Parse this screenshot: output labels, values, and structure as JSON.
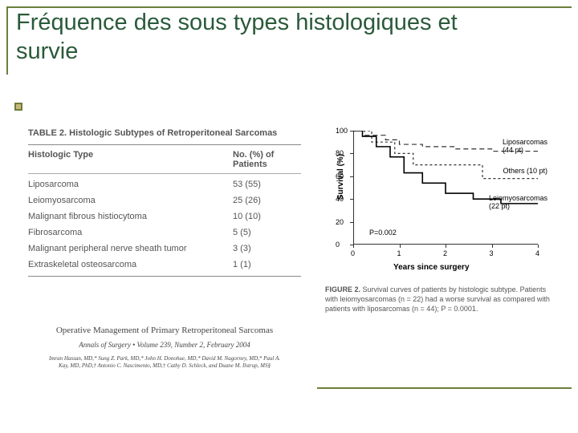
{
  "title": "Fréquence des sous types histologiques et survie",
  "table": {
    "caption": "TABLE 2.  Histologic Subtypes of Retroperitoneal Sarcomas",
    "col1": "Histologic Type",
    "col2": "No. (%) of Patients",
    "rows": [
      {
        "name": "Liposarcoma",
        "val": "53 (55)"
      },
      {
        "name": "Leiomyosarcoma",
        "val": "25 (26)"
      },
      {
        "name": "Malignant fibrous histiocytoma",
        "val": "10 (10)"
      },
      {
        "name": "Fibrosarcoma",
        "val": "5 (5)"
      },
      {
        "name": "Malignant peripheral nerve sheath tumor",
        "val": "3 (3)"
      },
      {
        "name": "Extraskeletal osteosarcoma",
        "val": "1 (1)"
      }
    ]
  },
  "cite": {
    "title": "Operative Management of Primary Retroperitoneal Sarcomas",
    "journal": "Annals of Surgery • Volume 239, Number 2, February 2004",
    "authors": "Imran Hassan, MD,* Sung Z. Park, MD,* John H. Donohue, MD,* David M. Nagorney, MD,* Paul A. Kay, MD, PhD,† Antonio C. Nascimento, MD,† Cathy D. Schleck, and Duane M. Ilstrup, MS§"
  },
  "chart": {
    "type": "km-survival",
    "ylabel": "Survival (%)",
    "xlabel": "Years since surgery",
    "ylim": [
      0,
      100
    ],
    "xlim": [
      0,
      4
    ],
    "yticks": [
      0,
      20,
      40,
      60,
      80,
      100
    ],
    "xticks": [
      0,
      1,
      2,
      3,
      4
    ],
    "pvalue": "P=0.002",
    "curves": {
      "lipo": {
        "label": "Liposarcomas",
        "n": "(44 pt)",
        "points": [
          [
            0,
            100
          ],
          [
            0.25,
            96
          ],
          [
            0.7,
            92
          ],
          [
            1.0,
            88
          ],
          [
            1.5,
            86
          ],
          [
            2.2,
            84
          ],
          [
            3.0,
            82
          ],
          [
            4.0,
            80
          ]
        ],
        "dash": "6 4",
        "color": "#333"
      },
      "others": {
        "label": "Others",
        "n": "(10 pt)",
        "points": [
          [
            0,
            100
          ],
          [
            0.4,
            90
          ],
          [
            0.9,
            80
          ],
          [
            1.3,
            70
          ],
          [
            2.0,
            70
          ],
          [
            2.8,
            58
          ],
          [
            3.4,
            58
          ],
          [
            4.0,
            58
          ]
        ],
        "dash": "3 3",
        "color": "#333"
      },
      "leio": {
        "label": "Leiomyosarcomas",
        "n": "(22 pt)",
        "points": [
          [
            0,
            100
          ],
          [
            0.2,
            95
          ],
          [
            0.5,
            86
          ],
          [
            0.8,
            77
          ],
          [
            1.1,
            63
          ],
          [
            1.5,
            54
          ],
          [
            2.0,
            45
          ],
          [
            2.6,
            40
          ],
          [
            3.2,
            36
          ],
          [
            4.0,
            36
          ]
        ],
        "dash": "",
        "color": "#000"
      }
    }
  },
  "figcap": {
    "lead": "FIGURE 2.",
    "text": " Survival curves of patients by histologic subtype. Patients with leiomyosarcomas (n = 22) had a worse survival as compared with patients with liposarcomas (n = 44); P = 0.0001."
  }
}
